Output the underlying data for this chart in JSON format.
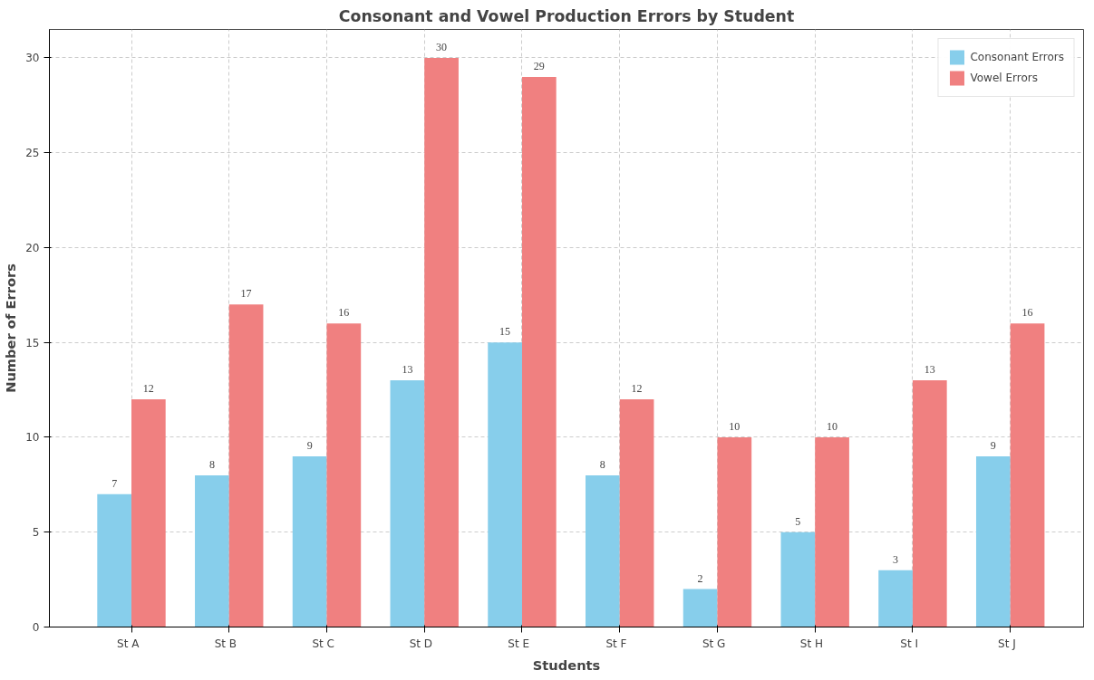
{
  "chart_data": {
    "type": "bar",
    "title": "Consonant and Vowel Production Errors by Student",
    "xlabel": "Students",
    "ylabel": "Number of Errors",
    "categories": [
      "St   A",
      "St   B",
      "St   C",
      "St   D",
      "St   E",
      "St   F",
      "St   G",
      "St   H",
      "St   I",
      "St   J"
    ],
    "series": [
      {
        "name": "Consonant Errors",
        "color": "#87ceeb",
        "values": [
          7,
          8,
          9,
          13,
          15,
          8,
          2,
          5,
          3,
          9
        ]
      },
      {
        "name": "Vowel Errors",
        "color": "#f08080",
        "values": [
          12,
          17,
          16,
          30,
          29,
          12,
          10,
          10,
          13,
          16
        ]
      }
    ],
    "ylim": [
      0,
      31.5
    ],
    "yticks": [
      0,
      5,
      10,
      15,
      20,
      25,
      30
    ],
    "grid": true,
    "legend": "top right",
    "data_labels": true
  }
}
